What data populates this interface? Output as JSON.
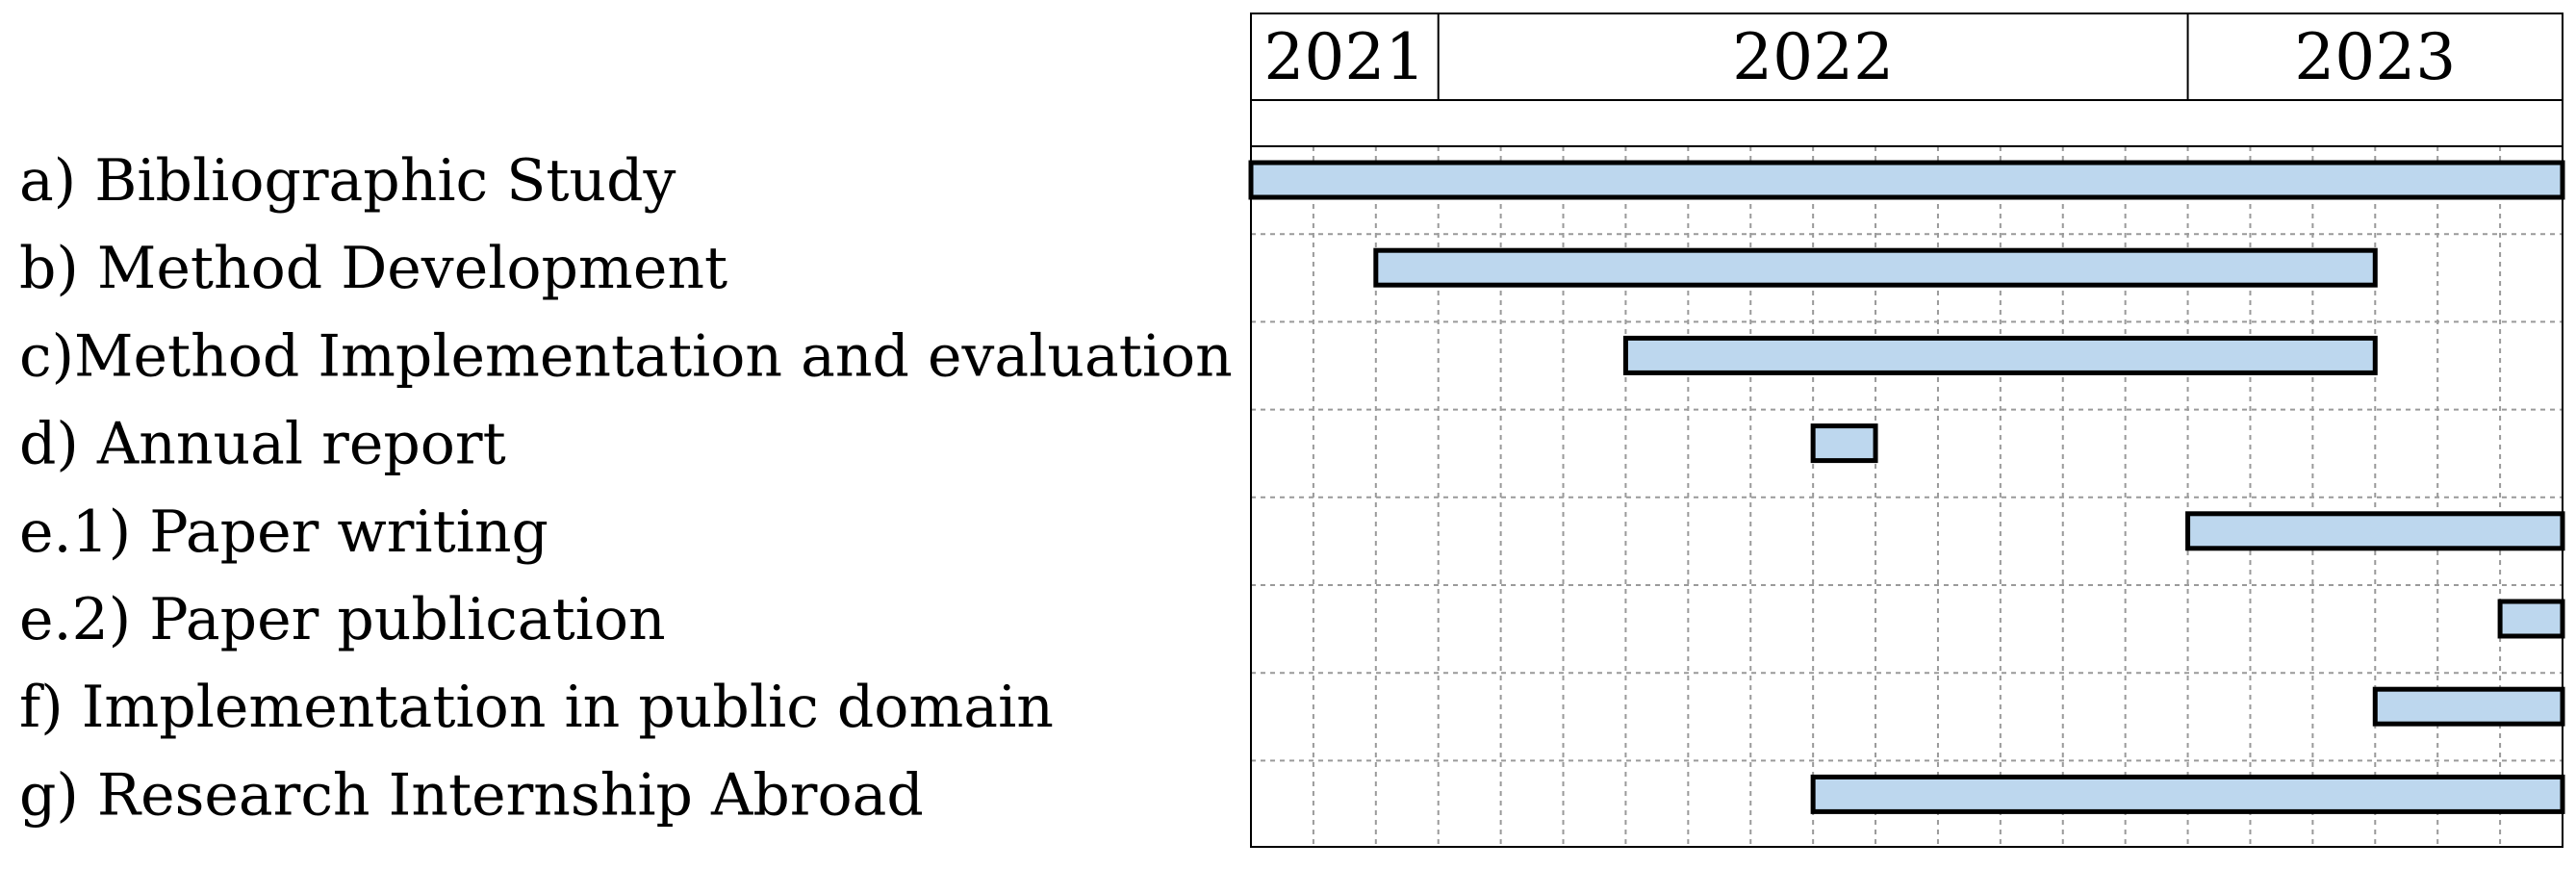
{
  "chart_data": {
    "type": "gantt",
    "time_axis": {
      "unit": "month",
      "start": "2021-10",
      "end": "2023-07",
      "year_labels": [
        {
          "label": "2021",
          "start": "2021-10",
          "end": "2021-12"
        },
        {
          "label": "2022",
          "start": "2022-01",
          "end": "2022-12"
        },
        {
          "label": "2023",
          "start": "2023-01",
          "end": "2023-06"
        }
      ],
      "grid": true
    },
    "tasks": [
      {
        "label": "a) Bibliographic Study",
        "start": "2021-10",
        "end": "2023-06"
      },
      {
        "label": "b) Method Development",
        "start": "2021-12",
        "end": "2023-03"
      },
      {
        "label": "c)Method Implementation and evaluation",
        "start": "2022-04",
        "end": "2023-03"
      },
      {
        "label": "d) Annual report",
        "start": "2022-07",
        "end": "2022-07"
      },
      {
        "label": "e.1) Paper writing",
        "start": "2023-01",
        "end": "2023-06"
      },
      {
        "label": "e.2) Paper publication",
        "start": "2023-06",
        "end": "2023-06"
      },
      {
        "label": "f) Implementation in public domain",
        "start": "2023-04",
        "end": "2023-06"
      },
      {
        "label": "g) Research Internship Abroad",
        "start": "2022-07",
        "end": "2023-06"
      }
    ],
    "colors": {
      "bar_fill": "#bdd7ee",
      "bar_stroke": "#000000",
      "grid": "#9a9a9a",
      "frame": "#000000"
    }
  }
}
